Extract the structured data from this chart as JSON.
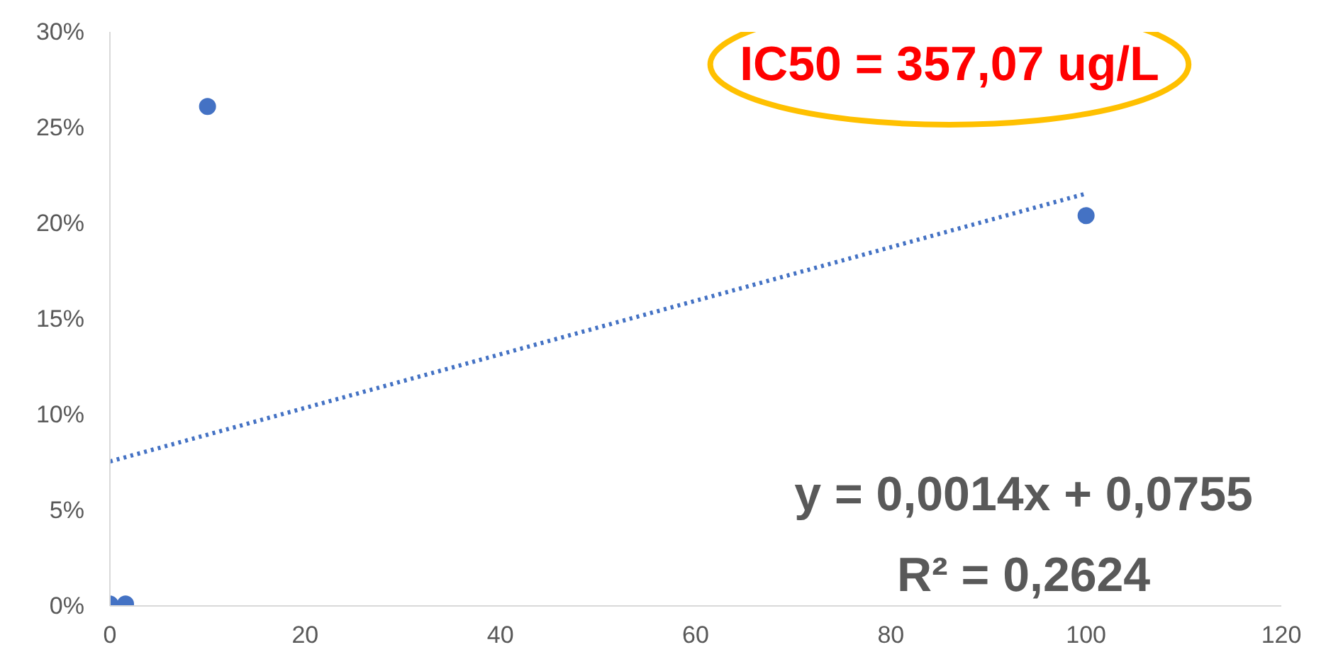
{
  "chart_data": {
    "type": "scatter",
    "marker": "circle",
    "grid": false,
    "xlim": [
      0,
      120
    ],
    "xticks": [
      0,
      20,
      40,
      60,
      80,
      100,
      120
    ],
    "ylim": [
      0,
      30
    ],
    "yticks": [
      {
        "value": 0,
        "label": "0%"
      },
      {
        "value": 5,
        "label": "5%"
      },
      {
        "value": 10,
        "label": "10%"
      },
      {
        "value": 15,
        "label": "15%"
      },
      {
        "value": 20,
        "label": "20%"
      },
      {
        "value": 25,
        "label": "25%"
      },
      {
        "value": 30,
        "label": "30%"
      }
    ],
    "series": [
      {
        "color": "#4472c4",
        "x": [
          0,
          1.6,
          10,
          100
        ],
        "values": [
          0.1,
          0.1,
          26.1,
          20.4
        ]
      },
      {
        "type": "line",
        "marker": "none",
        "line_style": "dotted",
        "color": "#4472c4",
        "x": [
          0,
          100
        ],
        "values": [
          7.55,
          21.55
        ]
      }
    ],
    "annotations": [
      "IC50 = 357,07 ug/L",
      "y = 0,0014x + 0,0755",
      "R² = 0,2624"
    ]
  }
}
